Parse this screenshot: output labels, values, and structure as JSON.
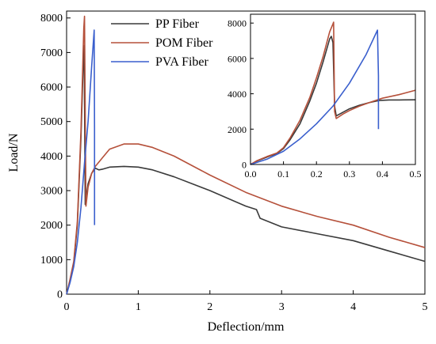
{
  "chart_data": {
    "type": "line",
    "title": "",
    "xlabel": "Deflection/mm",
    "ylabel": "Load/N",
    "xlim": [
      0,
      5
    ],
    "ylim": [
      0,
      8200
    ],
    "xticks": [
      "0",
      "1",
      "2",
      "3",
      "4",
      "5"
    ],
    "yticks": [
      "0",
      "1000",
      "2000",
      "3000",
      "4000",
      "5000",
      "6000",
      "7000",
      "8000"
    ],
    "grid": false,
    "legend_position": "top-left",
    "series": [
      {
        "name": "PP Fiber",
        "color": "#3a3a3a",
        "x": [
          0,
          0.05,
          0.1,
          0.15,
          0.2,
          0.24,
          0.245,
          0.26,
          0.3,
          0.35,
          0.4,
          0.45,
          0.5,
          0.6,
          0.8,
          1.0,
          1.2,
          1.5,
          2.0,
          2.5,
          2.65,
          2.7,
          3.0,
          3.5,
          4.0,
          4.5,
          5.0
        ],
        "values": [
          0,
          400,
          900,
          2000,
          4500,
          7200,
          7200,
          2600,
          3200,
          3500,
          3650,
          3600,
          3620,
          3680,
          3700,
          3680,
          3600,
          3400,
          3000,
          2550,
          2450,
          2200,
          1950,
          1750,
          1550,
          1250,
          950
        ]
      },
      {
        "name": "POM Fiber",
        "color": "#b5503a",
        "x": [
          0,
          0.05,
          0.1,
          0.15,
          0.2,
          0.24,
          0.25,
          0.27,
          0.3,
          0.35,
          0.4,
          0.5,
          0.6,
          0.8,
          1.0,
          1.2,
          1.5,
          2.0,
          2.5,
          3.0,
          3.5,
          4.0,
          4.5,
          5.0
        ],
        "values": [
          0,
          450,
          950,
          2100,
          4700,
          7700,
          8050,
          2550,
          3100,
          3500,
          3700,
          3950,
          4200,
          4350,
          4350,
          4250,
          4000,
          3450,
          2950,
          2550,
          2250,
          2000,
          1650,
          1350
        ]
      },
      {
        "name": "PVA Fiber",
        "color": "#3a5fcd",
        "x": [
          0,
          0.05,
          0.1,
          0.15,
          0.2,
          0.25,
          0.3,
          0.35,
          0.385,
          0.39,
          0.39
        ],
        "values": [
          0,
          350,
          800,
          1500,
          2500,
          3800,
          5000,
          6600,
          7650,
          4800,
          2000
        ]
      }
    ],
    "inset": {
      "xlim": [
        0,
        0.5
      ],
      "ylim": [
        0,
        8500
      ],
      "xticks": [
        "0.0",
        "0.1",
        "0.2",
        "0.3",
        "0.4",
        "0.5"
      ],
      "yticks": [
        "0",
        "2000",
        "4000",
        "6000",
        "8000"
      ],
      "series": [
        {
          "name": "PP Fiber",
          "color": "#3a3a3a",
          "x": [
            0,
            0.02,
            0.05,
            0.08,
            0.1,
            0.12,
            0.15,
            0.18,
            0.2,
            0.22,
            0.24,
            0.245,
            0.25,
            0.255,
            0.26,
            0.28,
            0.3,
            0.33,
            0.36,
            0.39,
            0.42,
            0.45,
            0.5
          ],
          "values": [
            0,
            200,
            420,
            620,
            900,
            1400,
            2300,
            3600,
            4600,
            5800,
            7100,
            7250,
            6900,
            3300,
            2750,
            2950,
            3150,
            3350,
            3500,
            3620,
            3650,
            3650,
            3660
          ]
        },
        {
          "name": "POM Fiber",
          "color": "#b5503a",
          "x": [
            0,
            0.02,
            0.05,
            0.08,
            0.1,
            0.12,
            0.15,
            0.18,
            0.2,
            0.22,
            0.24,
            0.25,
            0.252,
            0.255,
            0.26,
            0.28,
            0.3,
            0.33,
            0.36,
            0.4,
            0.45,
            0.5
          ],
          "values": [
            0,
            220,
            450,
            650,
            950,
            1500,
            2500,
            3800,
            4900,
            6100,
            7500,
            7950,
            8050,
            3000,
            2600,
            2850,
            3050,
            3300,
            3500,
            3750,
            3950,
            4200
          ]
        },
        {
          "name": "PVA Fiber",
          "color": "#3a5fcd",
          "x": [
            0,
            0.05,
            0.1,
            0.15,
            0.2,
            0.25,
            0.3,
            0.35,
            0.385,
            0.388,
            0.388
          ],
          "values": [
            0,
            300,
            750,
            1450,
            2300,
            3300,
            4600,
            6200,
            7600,
            5000,
            2000
          ]
        }
      ]
    }
  }
}
